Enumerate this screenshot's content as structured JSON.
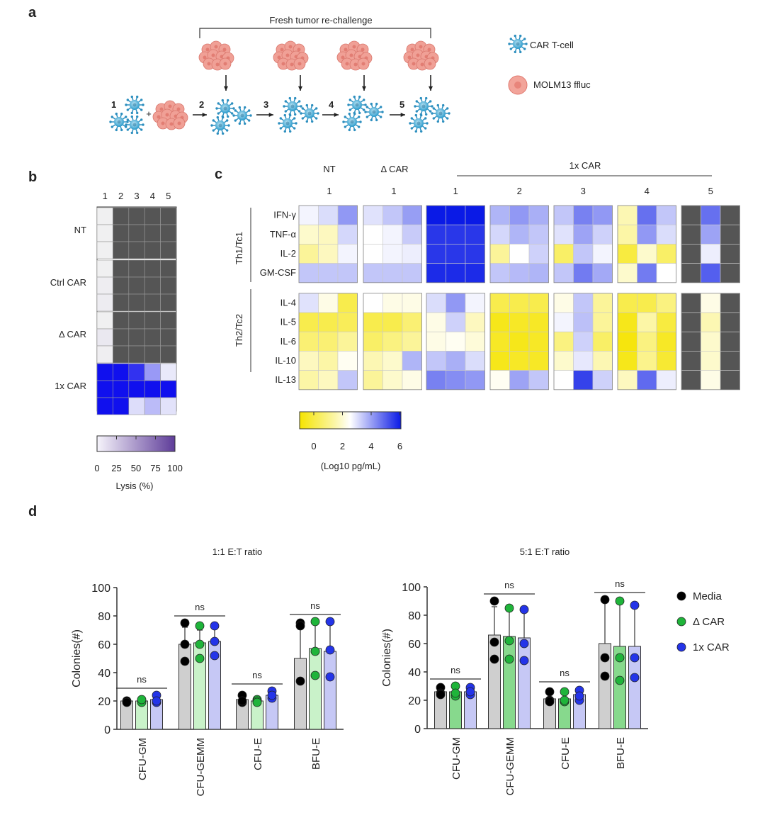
{
  "panels": {
    "a": {
      "label": "a",
      "rechallenge_label": "Fresh tumor re-challenge",
      "steps": [
        "1",
        "2",
        "3",
        "4",
        "5"
      ],
      "plus": "+",
      "legend": [
        {
          "icon": "car-t-cell-icon",
          "label": "CAR T-cell",
          "color": "#3aa6d6"
        },
        {
          "icon": "tumor-cell-icon",
          "label": "MOLM13 ffluc",
          "color": "#e8857b"
        }
      ]
    },
    "b": {
      "label": "b",
      "columns": [
        "1",
        "2",
        "3",
        "4",
        "5"
      ],
      "row_groups": [
        "NT",
        "Ctrl CAR",
        "Δ CAR",
        "1x CAR"
      ],
      "heatmap": [
        [
          5,
          null,
          null,
          null,
          null
        ],
        [
          5,
          null,
          null,
          null,
          null
        ],
        [
          5,
          null,
          null,
          null,
          null
        ],
        [
          5,
          null,
          null,
          null,
          null
        ],
        [
          10,
          null,
          null,
          null,
          null
        ],
        [
          12,
          null,
          null,
          null,
          null
        ],
        [
          5,
          null,
          null,
          null,
          null
        ],
        [
          20,
          null,
          null,
          null,
          null
        ],
        [
          8,
          null,
          null,
          null,
          null
        ],
        [
          100,
          100,
          85,
          40,
          5
        ],
        [
          100,
          100,
          100,
          100,
          100
        ],
        [
          100,
          100,
          10,
          25,
          8
        ]
      ],
      "colorbar_ticks": [
        "0",
        "25",
        "50",
        "75",
        "100"
      ],
      "colorbar_label": "Lysis (%)",
      "colors": {
        "low": "#f0eef8",
        "high": "#5e3c99",
        "na": "#555555"
      }
    },
    "c": {
      "label": "c",
      "group_headers": [
        "NT",
        "Δ CAR"
      ],
      "group_subs": [
        "1",
        "1"
      ],
      "car_header": "1x CAR",
      "car_rounds": [
        "1",
        "2",
        "3",
        "4",
        "5"
      ],
      "bracket_labels": [
        "Th1/Tc1",
        "Th2/Tc2"
      ],
      "rows": [
        "IFN-γ",
        "TNF-α",
        "IL-2",
        "GM-CSF",
        "IL-4",
        "IL-5",
        "IL-6",
        "IL-10",
        "IL-13"
      ],
      "heatmap": [
        [
          2.2,
          2.6,
          3.8,
          2.5,
          3.0,
          3.7,
          6,
          6,
          6,
          3.3,
          3.8,
          3.4,
          3.0,
          4.2,
          3.8,
          1.4,
          4.5,
          3.0,
          null,
          4.5,
          null
        ],
        [
          1.6,
          1.5,
          2.7,
          2.0,
          2.2,
          2.9,
          5.5,
          5.5,
          5.5,
          2.7,
          3.3,
          3.0,
          2.5,
          3.6,
          2.8,
          1.3,
          3.8,
          2.6,
          null,
          3.6,
          null
        ],
        [
          1.2,
          1.5,
          2.2,
          2.0,
          2.2,
          2.3,
          5.5,
          5.5,
          5.5,
          1.2,
          2.0,
          2.8,
          0.8,
          3.0,
          2.2,
          0.5,
          1.6,
          0.8,
          null,
          2.3,
          null
        ],
        [
          3.0,
          3.0,
          3.0,
          3.0,
          3.0,
          3.0,
          5.7,
          5.7,
          5.7,
          3.0,
          3.2,
          3.3,
          3.0,
          4.3,
          3.5,
          1.6,
          4.3,
          2.0,
          null,
          4.8,
          null
        ],
        [
          2.5,
          1.8,
          0.6,
          2.0,
          1.8,
          1.8,
          2.6,
          3.8,
          2.2,
          0.6,
          0.6,
          0.6,
          1.8,
          3.0,
          1.2,
          0.6,
          0.6,
          1.0,
          null,
          1.8,
          null
        ],
        [
          0.6,
          0.6,
          0.7,
          0.6,
          0.6,
          0.9,
          1.8,
          2.8,
          1.5,
          0.2,
          0.3,
          0.3,
          2.2,
          3.1,
          1.2,
          0.2,
          1.3,
          0.5,
          null,
          1.4,
          null
        ],
        [
          0.9,
          0.9,
          1.2,
          0.8,
          1.0,
          1.2,
          1.8,
          1.9,
          1.7,
          0.3,
          0.2,
          0.3,
          1.0,
          2.8,
          0.8,
          0.1,
          1.0,
          0.3,
          null,
          1.6,
          null
        ],
        [
          1.5,
          1.3,
          1.9,
          1.4,
          1.6,
          3.3,
          3.0,
          3.4,
          2.6,
          0.2,
          0.3,
          0.3,
          1.6,
          2.4,
          1.4,
          0.2,
          1.1,
          0.4,
          null,
          1.6,
          null
        ],
        [
          1.3,
          1.5,
          3.0,
          1.2,
          1.6,
          1.8,
          4.2,
          4.0,
          3.8,
          1.9,
          3.6,
          3.0,
          2.0,
          5.3,
          2.8,
          1.5,
          4.6,
          2.3,
          null,
          1.8,
          null
        ]
      ],
      "colorbar_ticks": [
        "0",
        "2",
        "4",
        "6"
      ],
      "colorbar_label": "(Log10 pg/mL)",
      "colors": {
        "low": "#f5e400",
        "mid": "#ffffff",
        "high": "#0a1ae6",
        "na": "#555555"
      }
    },
    "d": {
      "label": "d"
    }
  },
  "chart_data": [
    {
      "type": "bar",
      "title": "1:1 E:T ratio",
      "ylabel": "Colonies(#)",
      "ylim": [
        0,
        100
      ],
      "yticks": [
        0,
        20,
        40,
        60,
        80,
        100
      ],
      "categories": [
        "CFU-GM",
        "CFU-GEMM",
        "CFU-E",
        "BFU-E"
      ],
      "series": [
        {
          "name": "Media",
          "color": "#000000",
          "bar_color": "#cfcfcf",
          "values": [
            20,
            60,
            21,
            50
          ],
          "points": [
            [
              20,
              20,
              19
            ],
            [
              75,
              60,
              48
            ],
            [
              24,
              19,
              20
            ],
            [
              75,
              73,
              34
            ]
          ],
          "err": [
            2,
            12,
            3,
            22
          ]
        },
        {
          "name": "Δ CAR",
          "color": "#1fb43a",
          "bar_color": "#c9f2c9",
          "values": [
            20,
            61,
            20,
            57
          ],
          "points": [
            [
              20,
              19,
              21
            ],
            [
              73,
              60,
              50
            ],
            [
              21,
              20,
              19
            ],
            [
              76,
              55,
              38
            ]
          ],
          "err": [
            1,
            9,
            1,
            19
          ]
        },
        {
          "name": "1x CAR",
          "color": "#2434e8",
          "bar_color": "#c6c8f5",
          "values": [
            21,
            62,
            24,
            55
          ],
          "points": [
            [
              24,
              19,
              20
            ],
            [
              73,
              62,
              52
            ],
            [
              27,
              22,
              24
            ],
            [
              76,
              56,
              37
            ]
          ],
          "err": [
            3,
            10,
            3,
            20
          ]
        }
      ],
      "significance": [
        "ns",
        "ns",
        "ns",
        "ns"
      ]
    },
    {
      "type": "bar",
      "title": "5:1 E:T ratio",
      "ylabel": "Colonies(#)",
      "ylim": [
        0,
        100
      ],
      "yticks": [
        0,
        20,
        40,
        60,
        80,
        100
      ],
      "categories": [
        "CFU-GM",
        "CFU-GEMM",
        "CFU-E",
        "BFU-E"
      ],
      "series": [
        {
          "name": "Media",
          "color": "#000000",
          "bar_color": "#cfcfcf",
          "values": [
            26,
            66,
            21,
            60
          ],
          "points": [
            [
              29,
              25,
              24
            ],
            [
              90,
              61,
              49
            ],
            [
              26,
              20,
              19
            ],
            [
              91,
              37,
              50
            ]
          ],
          "err": [
            3,
            20,
            4,
            30
          ]
        },
        {
          "name": "Δ CAR",
          "color": "#1fb43a",
          "bar_color": "#87d98d",
          "values": [
            26,
            65,
            21,
            58
          ],
          "points": [
            [
              30,
              23,
              25
            ],
            [
              85,
              62,
              49
            ],
            [
              26,
              19,
              20
            ],
            [
              90,
              34,
              50
            ]
          ],
          "err": [
            4,
            20,
            4,
            30
          ]
        },
        {
          "name": "1x CAR",
          "color": "#2434e8",
          "bar_color": "#c6c8f5",
          "values": [
            26,
            64,
            24,
            58
          ],
          "points": [
            [
              29,
              24,
              26
            ],
            [
              84,
              60,
              48
            ],
            [
              27,
              20,
              23
            ],
            [
              87,
              36,
              50
            ]
          ],
          "err": [
            3,
            19,
            4,
            29
          ]
        }
      ],
      "significance": [
        "ns",
        "ns",
        "ns",
        "ns"
      ]
    }
  ]
}
